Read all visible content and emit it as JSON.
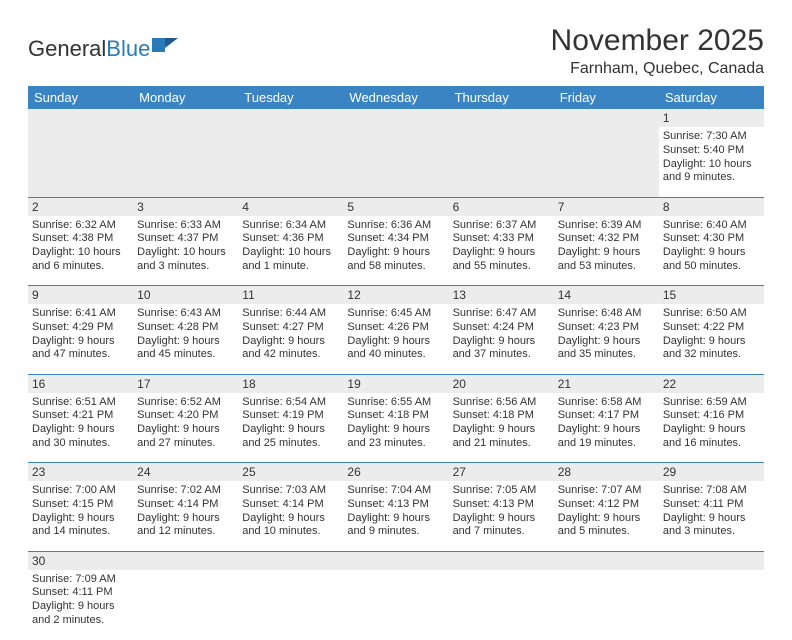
{
  "logo": {
    "part1": "General",
    "part2": "Blue"
  },
  "title": "November 2025",
  "subtitle": "Farnham, Quebec, Canada",
  "colors": {
    "headerBlue": "#3b84c4",
    "logoBlue": "#2a7ab8",
    "rowGray": "#ececec",
    "text": "#333333"
  },
  "daysOfWeek": [
    "Sunday",
    "Monday",
    "Tuesday",
    "Wednesday",
    "Thursday",
    "Friday",
    "Saturday"
  ],
  "weeks": [
    [
      null,
      null,
      null,
      null,
      null,
      null,
      {
        "n": "1",
        "sr": "7:30 AM",
        "ss": "5:40 PM",
        "dl": "10 hours and 9 minutes."
      }
    ],
    [
      {
        "n": "2",
        "sr": "6:32 AM",
        "ss": "4:38 PM",
        "dl": "10 hours and 6 minutes."
      },
      {
        "n": "3",
        "sr": "6:33 AM",
        "ss": "4:37 PM",
        "dl": "10 hours and 3 minutes."
      },
      {
        "n": "4",
        "sr": "6:34 AM",
        "ss": "4:36 PM",
        "dl": "10 hours and 1 minute."
      },
      {
        "n": "5",
        "sr": "6:36 AM",
        "ss": "4:34 PM",
        "dl": "9 hours and 58 minutes."
      },
      {
        "n": "6",
        "sr": "6:37 AM",
        "ss": "4:33 PM",
        "dl": "9 hours and 55 minutes."
      },
      {
        "n": "7",
        "sr": "6:39 AM",
        "ss": "4:32 PM",
        "dl": "9 hours and 53 minutes."
      },
      {
        "n": "8",
        "sr": "6:40 AM",
        "ss": "4:30 PM",
        "dl": "9 hours and 50 minutes."
      }
    ],
    [
      {
        "n": "9",
        "sr": "6:41 AM",
        "ss": "4:29 PM",
        "dl": "9 hours and 47 minutes."
      },
      {
        "n": "10",
        "sr": "6:43 AM",
        "ss": "4:28 PM",
        "dl": "9 hours and 45 minutes."
      },
      {
        "n": "11",
        "sr": "6:44 AM",
        "ss": "4:27 PM",
        "dl": "9 hours and 42 minutes."
      },
      {
        "n": "12",
        "sr": "6:45 AM",
        "ss": "4:26 PM",
        "dl": "9 hours and 40 minutes."
      },
      {
        "n": "13",
        "sr": "6:47 AM",
        "ss": "4:24 PM",
        "dl": "9 hours and 37 minutes."
      },
      {
        "n": "14",
        "sr": "6:48 AM",
        "ss": "4:23 PM",
        "dl": "9 hours and 35 minutes."
      },
      {
        "n": "15",
        "sr": "6:50 AM",
        "ss": "4:22 PM",
        "dl": "9 hours and 32 minutes."
      }
    ],
    [
      {
        "n": "16",
        "sr": "6:51 AM",
        "ss": "4:21 PM",
        "dl": "9 hours and 30 minutes."
      },
      {
        "n": "17",
        "sr": "6:52 AM",
        "ss": "4:20 PM",
        "dl": "9 hours and 27 minutes."
      },
      {
        "n": "18",
        "sr": "6:54 AM",
        "ss": "4:19 PM",
        "dl": "9 hours and 25 minutes."
      },
      {
        "n": "19",
        "sr": "6:55 AM",
        "ss": "4:18 PM",
        "dl": "9 hours and 23 minutes."
      },
      {
        "n": "20",
        "sr": "6:56 AM",
        "ss": "4:18 PM",
        "dl": "9 hours and 21 minutes."
      },
      {
        "n": "21",
        "sr": "6:58 AM",
        "ss": "4:17 PM",
        "dl": "9 hours and 19 minutes."
      },
      {
        "n": "22",
        "sr": "6:59 AM",
        "ss": "4:16 PM",
        "dl": "9 hours and 16 minutes."
      }
    ],
    [
      {
        "n": "23",
        "sr": "7:00 AM",
        "ss": "4:15 PM",
        "dl": "9 hours and 14 minutes."
      },
      {
        "n": "24",
        "sr": "7:02 AM",
        "ss": "4:14 PM",
        "dl": "9 hours and 12 minutes."
      },
      {
        "n": "25",
        "sr": "7:03 AM",
        "ss": "4:14 PM",
        "dl": "9 hours and 10 minutes."
      },
      {
        "n": "26",
        "sr": "7:04 AM",
        "ss": "4:13 PM",
        "dl": "9 hours and 9 minutes."
      },
      {
        "n": "27",
        "sr": "7:05 AM",
        "ss": "4:13 PM",
        "dl": "9 hours and 7 minutes."
      },
      {
        "n": "28",
        "sr": "7:07 AM",
        "ss": "4:12 PM",
        "dl": "9 hours and 5 minutes."
      },
      {
        "n": "29",
        "sr": "7:08 AM",
        "ss": "4:11 PM",
        "dl": "9 hours and 3 minutes."
      }
    ],
    [
      {
        "n": "30",
        "sr": "7:09 AM",
        "ss": "4:11 PM",
        "dl": "9 hours and 2 minutes."
      },
      null,
      null,
      null,
      null,
      null,
      null
    ]
  ],
  "labels": {
    "sunrise": "Sunrise: ",
    "sunset": "Sunset: ",
    "daylight": "Daylight: "
  }
}
